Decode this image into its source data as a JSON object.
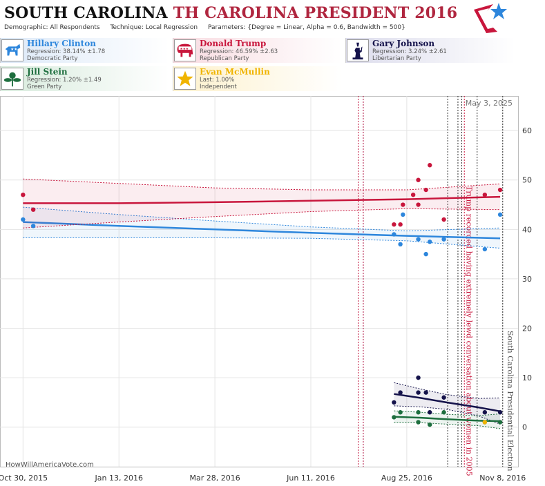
{
  "title": {
    "state": "SOUTH CAROLINA",
    "race": "TH CAROLINA PRESIDENT 2016"
  },
  "params": {
    "demographic": "Demographic: All Respondents",
    "technique": "Technique: Local Regression",
    "parameters": "Parameters: {Degree = Linear, Alpha = 0.6, Bandwidth = 500}"
  },
  "candidates": [
    {
      "name": "Hillary Clinton",
      "line2": "Regression: 38.14% ±1.78",
      "line3": "Democratic Party",
      "color": "#2d86dc",
      "icon": "donkey-icon"
    },
    {
      "name": "Donald Trump",
      "line2": "Regression: 46.59% ±2.63",
      "line3": "Republican Party",
      "color": "#c8163c",
      "icon": "elephant-icon"
    },
    {
      "name": "Gary Johnson",
      "line2": "Regression: 3.24% ±2.61",
      "line3": "Libertarian Party",
      "color": "#14124a",
      "icon": "liberty-icon"
    },
    {
      "name": "Jill Stein",
      "line2": "Regression: 1.20% ±1.49",
      "line3": "Green Party",
      "color": "#1d6e3e",
      "icon": "flower-icon"
    },
    {
      "name": "Evan McMullin",
      "line2": "Last: 1.00%",
      "line3": "Independent",
      "color": "#f0b400",
      "icon": "star-icon"
    }
  ],
  "watermark": "HowWillAmericaVote.com",
  "chart_data": {
    "type": "scatter",
    "date_label": "May 3, 2025",
    "x_ticks": [
      {
        "date": "2015-10-30",
        "label": "Oct 30, 2015"
      },
      {
        "date": "2016-01-13",
        "label": "Jan 13, 2016"
      },
      {
        "date": "2016-03-28",
        "label": "Mar 28, 2016"
      },
      {
        "date": "2016-06-11",
        "label": "Jun 11, 2016"
      },
      {
        "date": "2016-08-25",
        "label": "Aug 25, 2016"
      },
      {
        "date": "2016-11-08",
        "label": "Nov 8, 2016"
      }
    ],
    "xlim": [
      "2015-10-12",
      "2016-11-20"
    ],
    "y_ticks": [
      0,
      10,
      20,
      30,
      40,
      50,
      60
    ],
    "ylim": [
      -8,
      67
    ],
    "events": [
      {
        "date": "2016-07-18",
        "color": "#2d86dc"
      },
      {
        "date": "2016-07-22",
        "color": "#2d86dc"
      },
      {
        "date": "2016-07-18",
        "color": "#c8163c"
      },
      {
        "date": "2016-07-22",
        "color": "#c8163c"
      },
      {
        "date": "2016-09-26",
        "color": "#333333"
      },
      {
        "date": "2016-10-04",
        "color": "#333333"
      },
      {
        "date": "2016-10-07",
        "color": "#333333"
      },
      {
        "date": "2016-10-09",
        "color": "#c8163c"
      },
      {
        "date": "2016-10-19",
        "color": "#333333"
      },
      {
        "date": "2016-11-08",
        "color": "#333333"
      }
    ],
    "annotations": [
      {
        "date": "2016-10-07",
        "text": "Trump recorded having extremely lewd conversation about women in 2005",
        "color": "#c8163c"
      },
      {
        "date": "2016-11-08",
        "text": "South Carolina Presidential Election",
        "color": "#555555"
      }
    ],
    "series": [
      {
        "name": "Hillary Clinton",
        "color": "#2d86dc",
        "points": [
          [
            "2015-10-30",
            42
          ],
          [
            "2015-11-07",
            40.7
          ],
          [
            "2016-08-15",
            39
          ],
          [
            "2016-08-20",
            37
          ],
          [
            "2016-08-22",
            43
          ],
          [
            "2016-09-03",
            38
          ],
          [
            "2016-09-09",
            35
          ],
          [
            "2016-09-12",
            37.5
          ],
          [
            "2016-09-23",
            38
          ],
          [
            "2016-10-25",
            36
          ],
          [
            "2016-11-06",
            43
          ]
        ],
        "trend": [
          [
            "2015-10-30",
            41.5
          ],
          [
            "2016-01-13",
            40.7
          ],
          [
            "2016-03-28",
            40.0
          ],
          [
            "2016-06-11",
            39.3
          ],
          [
            "2016-08-25",
            38.7
          ],
          [
            "2016-11-06",
            38.2
          ]
        ],
        "upper": [
          [
            "2015-10-30",
            44.5
          ],
          [
            "2016-01-13",
            43
          ],
          [
            "2016-03-28",
            41.7
          ],
          [
            "2016-06-11",
            40.5
          ],
          [
            "2016-08-25",
            39.7
          ],
          [
            "2016-11-06",
            40.3
          ]
        ],
        "lower": [
          [
            "2015-10-30",
            38.3
          ],
          [
            "2016-01-13",
            38.3
          ],
          [
            "2016-03-28",
            38.3
          ],
          [
            "2016-06-11",
            38.2
          ],
          [
            "2016-08-25",
            37.7
          ],
          [
            "2016-11-06",
            36.2
          ]
        ]
      },
      {
        "name": "Donald Trump",
        "color": "#c8163c",
        "points": [
          [
            "2015-10-30",
            47
          ],
          [
            "2015-11-07",
            44
          ],
          [
            "2016-08-15",
            41
          ],
          [
            "2016-08-20",
            41
          ],
          [
            "2016-08-22",
            45
          ],
          [
            "2016-08-30",
            47
          ],
          [
            "2016-09-03",
            50
          ],
          [
            "2016-09-03",
            45
          ],
          [
            "2016-09-09",
            48
          ],
          [
            "2016-09-12",
            53
          ],
          [
            "2016-09-23",
            42
          ],
          [
            "2016-10-25",
            47
          ],
          [
            "2016-11-06",
            48
          ]
        ],
        "trend": [
          [
            "2015-10-30",
            45.3
          ],
          [
            "2016-01-13",
            45.3
          ],
          [
            "2016-03-28",
            45.5
          ],
          [
            "2016-06-11",
            45.8
          ],
          [
            "2016-08-25",
            46.1
          ],
          [
            "2016-11-06",
            46.6
          ]
        ],
        "upper": [
          [
            "2015-10-30",
            50.2
          ],
          [
            "2016-01-13",
            49.3
          ],
          [
            "2016-03-28",
            48.4
          ],
          [
            "2016-06-11",
            48
          ],
          [
            "2016-08-25",
            48
          ],
          [
            "2016-11-06",
            49.2
          ]
        ],
        "lower": [
          [
            "2015-10-30",
            40.3
          ],
          [
            "2016-01-13",
            41.5
          ],
          [
            "2016-03-28",
            42.6
          ],
          [
            "2016-06-11",
            43.6
          ],
          [
            "2016-08-25",
            44.2
          ],
          [
            "2016-11-06",
            44
          ]
        ]
      },
      {
        "name": "Gary Johnson",
        "color": "#14124a",
        "points": [
          [
            "2016-08-15",
            5
          ],
          [
            "2016-08-20",
            7
          ],
          [
            "2016-09-03",
            10
          ],
          [
            "2016-09-03",
            7
          ],
          [
            "2016-09-09",
            7
          ],
          [
            "2016-09-12",
            3
          ],
          [
            "2016-09-23",
            6
          ],
          [
            "2016-10-25",
            3
          ],
          [
            "2016-11-06",
            3
          ]
        ],
        "trend": [
          [
            "2016-08-15",
            6.7
          ],
          [
            "2016-09-05",
            5.9
          ],
          [
            "2016-09-25",
            5
          ],
          [
            "2016-10-20",
            4
          ],
          [
            "2016-11-06",
            3.2
          ]
        ],
        "upper": [
          [
            "2016-08-15",
            9
          ],
          [
            "2016-09-05",
            7.7
          ],
          [
            "2016-09-25",
            6.6
          ],
          [
            "2016-10-20",
            5.8
          ],
          [
            "2016-11-06",
            5.9
          ]
        ],
        "lower": [
          [
            "2016-08-15",
            4.3
          ],
          [
            "2016-09-05",
            4.1
          ],
          [
            "2016-09-25",
            3.6
          ],
          [
            "2016-10-20",
            2.3
          ],
          [
            "2016-11-06",
            0.6
          ]
        ]
      },
      {
        "name": "Jill Stein",
        "color": "#1d6e3e",
        "points": [
          [
            "2016-08-15",
            2
          ],
          [
            "2016-08-20",
            3
          ],
          [
            "2016-09-03",
            3
          ],
          [
            "2016-09-03",
            1
          ],
          [
            "2016-09-12",
            0.5
          ],
          [
            "2016-09-23",
            3
          ],
          [
            "2016-10-25",
            1
          ],
          [
            "2016-11-06",
            1
          ]
        ],
        "trend": [
          [
            "2016-08-15",
            2.1
          ],
          [
            "2016-09-05",
            1.9
          ],
          [
            "2016-09-25",
            1.6
          ],
          [
            "2016-10-20",
            1.3
          ],
          [
            "2016-11-06",
            1.2
          ]
        ],
        "upper": [
          [
            "2016-08-15",
            3.3
          ],
          [
            "2016-09-05",
            3
          ],
          [
            "2016-09-25",
            2.6
          ],
          [
            "2016-10-20",
            2.3
          ],
          [
            "2016-11-06",
            2.7
          ]
        ],
        "lower": [
          [
            "2016-08-15",
            0.9
          ],
          [
            "2016-09-05",
            0.9
          ],
          [
            "2016-09-25",
            0.6
          ],
          [
            "2016-10-20",
            0.3
          ],
          [
            "2016-11-06",
            -0.3
          ]
        ]
      },
      {
        "name": "Evan McMullin",
        "color": "#f0b400",
        "points": [
          [
            "2016-10-25",
            1
          ]
        ],
        "trend": [],
        "upper": [],
        "lower": []
      }
    ]
  }
}
